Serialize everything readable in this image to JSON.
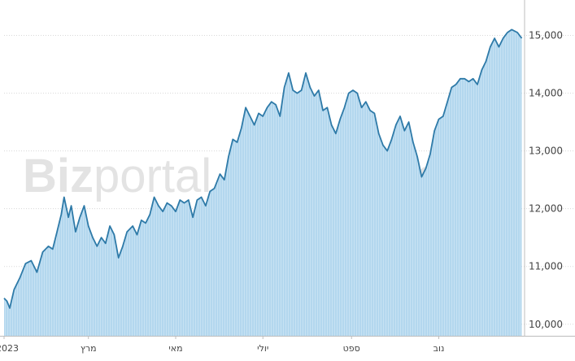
{
  "watermark": {
    "bold": "Biz",
    "light": "portal"
  },
  "chart_data": {
    "type": "area",
    "title": "",
    "xlabel": "",
    "ylabel": "",
    "x_range": [
      "2023-01-01",
      "2023-12-31"
    ],
    "ylim": [
      9800,
      15500
    ],
    "y_ticks": [
      10000,
      11000,
      12000,
      13000,
      14000,
      15000
    ],
    "y_tick_labels": [
      "10,000",
      "11,000",
      "12,000",
      "13,000",
      "14,000",
      "15,000"
    ],
    "x_ticks": [
      {
        "date": "2023-01-01",
        "label": "2023"
      },
      {
        "date": "2023-03-01",
        "label": "מרץ"
      },
      {
        "date": "2023-05-01",
        "label": "מאי"
      },
      {
        "date": "2023-07-01",
        "label": "יולי"
      },
      {
        "date": "2023-09-01",
        "label": "ספט"
      },
      {
        "date": "2023-11-01",
        "label": "נוב"
      }
    ],
    "grid": true,
    "y_axis_position": "right",
    "colors": {
      "line": "#2e7aa8",
      "fill": "#b3d7ee",
      "fill_stripe": "#c7e2f3",
      "grid": "#d8d8d8"
    },
    "series": [
      {
        "values": [
          [
            "2023-01-01",
            10450
          ],
          [
            "2023-01-03",
            10400
          ],
          [
            "2023-01-05",
            10280
          ],
          [
            "2023-01-08",
            10600
          ],
          [
            "2023-01-12",
            10800
          ],
          [
            "2023-01-16",
            11050
          ],
          [
            "2023-01-20",
            11100
          ],
          [
            "2023-01-24",
            10900
          ],
          [
            "2023-01-28",
            11250
          ],
          [
            "2023-02-01",
            11350
          ],
          [
            "2023-02-04",
            11300
          ],
          [
            "2023-02-07",
            11600
          ],
          [
            "2023-02-10",
            11900
          ],
          [
            "2023-02-12",
            12200
          ],
          [
            "2023-02-15",
            11850
          ],
          [
            "2023-02-17",
            12050
          ],
          [
            "2023-02-20",
            11600
          ],
          [
            "2023-02-23",
            11850
          ],
          [
            "2023-02-26",
            12050
          ],
          [
            "2023-03-01",
            11700
          ],
          [
            "2023-03-04",
            11500
          ],
          [
            "2023-03-07",
            11350
          ],
          [
            "2023-03-10",
            11500
          ],
          [
            "2023-03-13",
            11400
          ],
          [
            "2023-03-16",
            11700
          ],
          [
            "2023-03-19",
            11550
          ],
          [
            "2023-03-22",
            11150
          ],
          [
            "2023-03-25",
            11350
          ],
          [
            "2023-03-28",
            11600
          ],
          [
            "2023-04-01",
            11700
          ],
          [
            "2023-04-04",
            11550
          ],
          [
            "2023-04-07",
            11800
          ],
          [
            "2023-04-10",
            11750
          ],
          [
            "2023-04-13",
            11900
          ],
          [
            "2023-04-16",
            12200
          ],
          [
            "2023-04-19",
            12050
          ],
          [
            "2023-04-22",
            11950
          ],
          [
            "2023-04-25",
            12100
          ],
          [
            "2023-04-28",
            12050
          ],
          [
            "2023-05-01",
            11950
          ],
          [
            "2023-05-04",
            12150
          ],
          [
            "2023-05-07",
            12100
          ],
          [
            "2023-05-10",
            12150
          ],
          [
            "2023-05-13",
            11850
          ],
          [
            "2023-05-16",
            12150
          ],
          [
            "2023-05-19",
            12200
          ],
          [
            "2023-05-22",
            12050
          ],
          [
            "2023-05-25",
            12300
          ],
          [
            "2023-05-28",
            12350
          ],
          [
            "2023-06-01",
            12600
          ],
          [
            "2023-06-04",
            12500
          ],
          [
            "2023-06-07",
            12900
          ],
          [
            "2023-06-10",
            13200
          ],
          [
            "2023-06-13",
            13150
          ],
          [
            "2023-06-16",
            13400
          ],
          [
            "2023-06-19",
            13750
          ],
          [
            "2023-06-22",
            13600
          ],
          [
            "2023-06-25",
            13450
          ],
          [
            "2023-06-28",
            13650
          ],
          [
            "2023-07-01",
            13600
          ],
          [
            "2023-07-04",
            13750
          ],
          [
            "2023-07-07",
            13850
          ],
          [
            "2023-07-10",
            13800
          ],
          [
            "2023-07-13",
            13600
          ],
          [
            "2023-07-16",
            14100
          ],
          [
            "2023-07-19",
            14350
          ],
          [
            "2023-07-22",
            14050
          ],
          [
            "2023-07-25",
            14000
          ],
          [
            "2023-07-28",
            14050
          ],
          [
            "2023-07-31",
            14350
          ],
          [
            "2023-08-03",
            14100
          ],
          [
            "2023-08-06",
            13950
          ],
          [
            "2023-08-09",
            14050
          ],
          [
            "2023-08-12",
            13700
          ],
          [
            "2023-08-15",
            13750
          ],
          [
            "2023-08-18",
            13450
          ],
          [
            "2023-08-21",
            13300
          ],
          [
            "2023-08-24",
            13550
          ],
          [
            "2023-08-27",
            13750
          ],
          [
            "2023-08-30",
            14000
          ],
          [
            "2023-09-02",
            14050
          ],
          [
            "2023-09-05",
            14000
          ],
          [
            "2023-09-08",
            13750
          ],
          [
            "2023-09-11",
            13850
          ],
          [
            "2023-09-14",
            13700
          ],
          [
            "2023-09-17",
            13650
          ],
          [
            "2023-09-20",
            13300
          ],
          [
            "2023-09-23",
            13100
          ],
          [
            "2023-09-26",
            13000
          ],
          [
            "2023-09-29",
            13200
          ],
          [
            "2023-10-02",
            13450
          ],
          [
            "2023-10-05",
            13600
          ],
          [
            "2023-10-08",
            13350
          ],
          [
            "2023-10-11",
            13500
          ],
          [
            "2023-10-14",
            13150
          ],
          [
            "2023-10-17",
            12900
          ],
          [
            "2023-10-20",
            12550
          ],
          [
            "2023-10-23",
            12700
          ],
          [
            "2023-10-26",
            12950
          ],
          [
            "2023-10-29",
            13350
          ],
          [
            "2023-11-01",
            13550
          ],
          [
            "2023-11-04",
            13600
          ],
          [
            "2023-11-07",
            13850
          ],
          [
            "2023-11-10",
            14100
          ],
          [
            "2023-11-13",
            14150
          ],
          [
            "2023-11-16",
            14250
          ],
          [
            "2023-11-19",
            14250
          ],
          [
            "2023-11-22",
            14200
          ],
          [
            "2023-11-25",
            14250
          ],
          [
            "2023-11-28",
            14150
          ],
          [
            "2023-12-01",
            14400
          ],
          [
            "2023-12-04",
            14550
          ],
          [
            "2023-12-07",
            14800
          ],
          [
            "2023-12-10",
            14950
          ],
          [
            "2023-12-13",
            14800
          ],
          [
            "2023-12-16",
            14950
          ],
          [
            "2023-12-19",
            15050
          ],
          [
            "2023-12-22",
            15100
          ],
          [
            "2023-12-26",
            15050
          ],
          [
            "2023-12-29",
            14950
          ]
        ]
      }
    ]
  }
}
